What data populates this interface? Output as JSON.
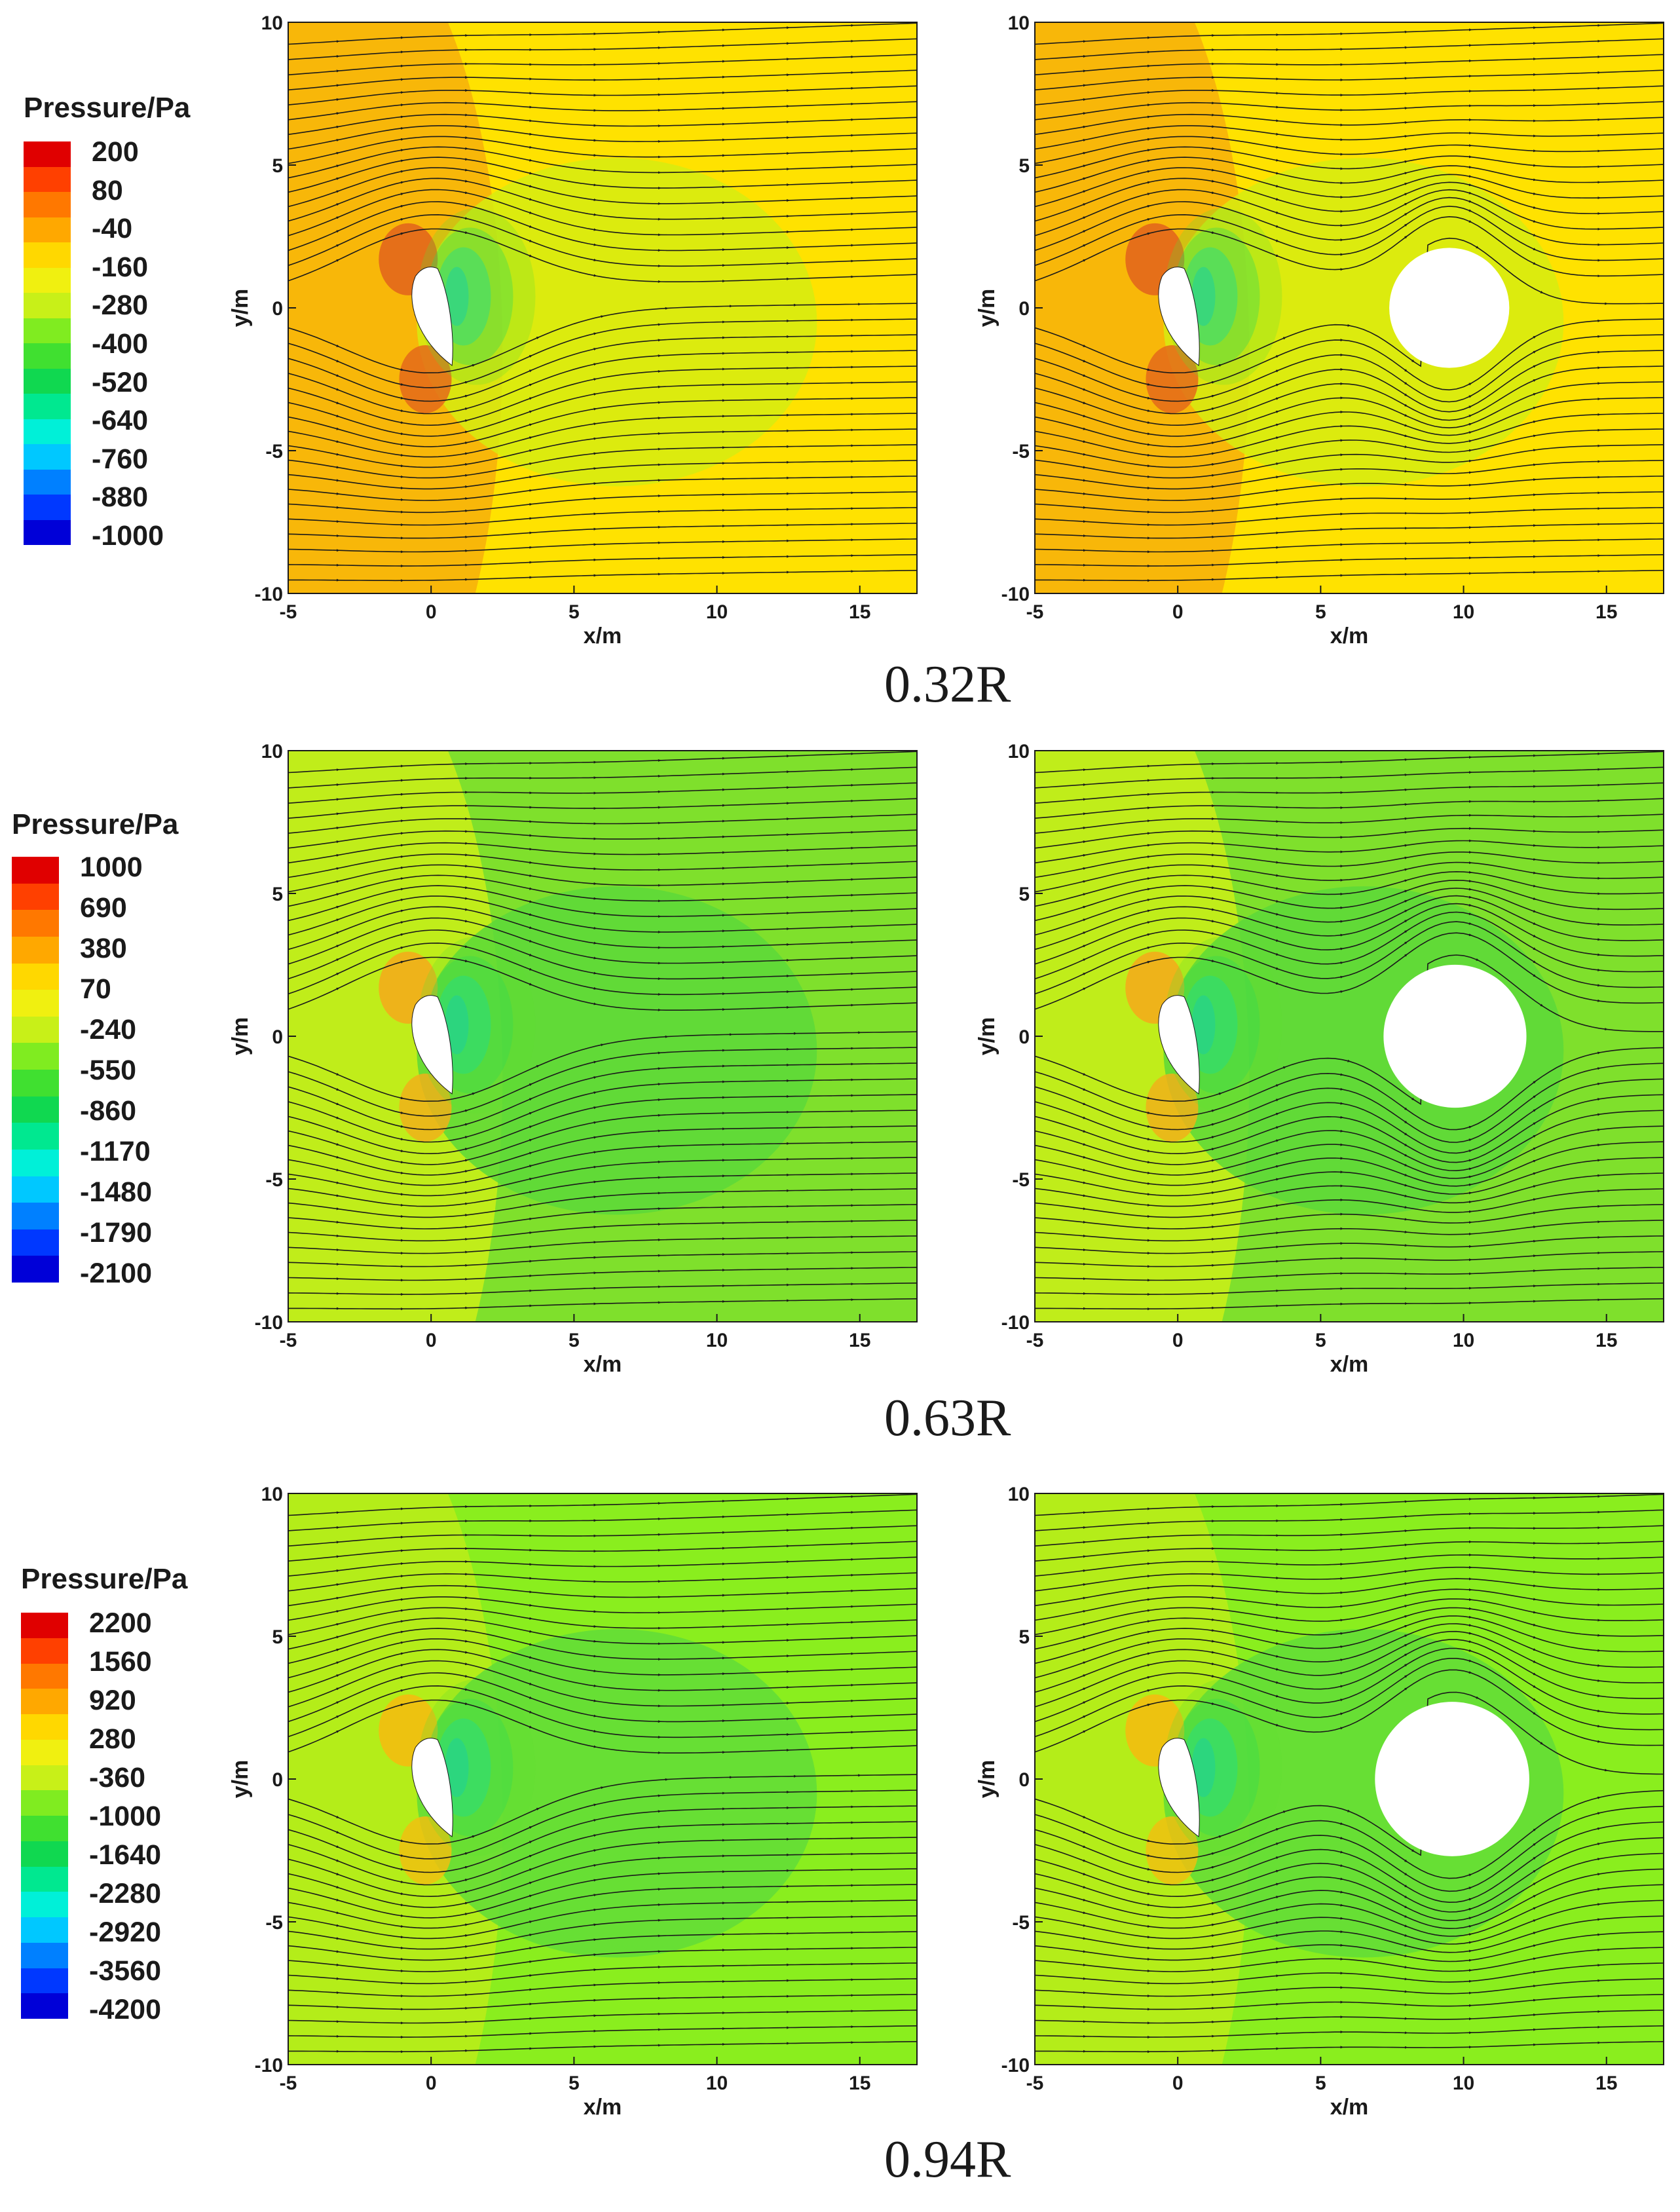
{
  "colors": {
    "scale": [
      "#0000d8",
      "#0038ff",
      "#0080ff",
      "#00c8ff",
      "#00f0d8",
      "#00e890",
      "#10d850",
      "#40e030",
      "#80ec20",
      "#c8f018",
      "#f0f010",
      "#ffd800",
      "#ffa800",
      "#ff7800",
      "#ff4000",
      "#e00000"
    ],
    "streamline": "#1a1a1a",
    "frame": "#1a1a1a"
  },
  "rows": [
    {
      "caption": "0.32R",
      "legend": {
        "title": "Pressure/Pa",
        "labels": [
          "200",
          "80",
          "-40",
          "-160",
          "-280",
          "-400",
          "-520",
          "-640",
          "-760",
          "-880",
          "-1000"
        ]
      },
      "panels": [
        {
          "has_cylinder": false,
          "background": "#ffe200",
          "xlabel": "x/m",
          "ylabel": "y/m",
          "xticks": [
            "-5",
            "0",
            "5",
            "10",
            "15"
          ],
          "yticks": [
            "10",
            "5",
            "0",
            "-5",
            "-10"
          ]
        },
        {
          "has_cylinder": true,
          "background": "#ffe200",
          "xlabel": "x/m",
          "ylabel": "y/m",
          "xticks": [
            "-5",
            "0",
            "5",
            "10",
            "15"
          ],
          "yticks": [
            "10",
            "5",
            "0",
            "-5",
            "-10"
          ]
        }
      ]
    },
    {
      "caption": "0.63R",
      "legend": {
        "title": "Pressure/Pa",
        "labels": [
          "1000",
          "690",
          "380",
          "70",
          "-240",
          "-550",
          "-860",
          "-1170",
          "-1480",
          "-1790",
          "-2100"
        ]
      },
      "panels": [
        {
          "has_cylinder": false,
          "background": "#7fe02c",
          "xlabel": "x/m",
          "ylabel": "y/m",
          "xticks": [
            "-5",
            "0",
            "5",
            "10",
            "15"
          ],
          "yticks": [
            "10",
            "5",
            "0",
            "-5",
            "-10"
          ]
        },
        {
          "has_cylinder": true,
          "background": "#7fe02c",
          "xlabel": "x/m",
          "ylabel": "y/m",
          "xticks": [
            "-5",
            "0",
            "5",
            "10",
            "15"
          ],
          "yticks": [
            "10",
            "5",
            "0",
            "-5",
            "-10"
          ]
        }
      ]
    },
    {
      "caption": "0.94R",
      "legend": {
        "title": "Pressure/Pa",
        "labels": [
          "2200",
          "1560",
          "920",
          "280",
          "-360",
          "-1000",
          "-1640",
          "-2280",
          "-2920",
          "-3560",
          "-4200"
        ]
      },
      "panels": [
        {
          "has_cylinder": false,
          "background": "#8aee1e",
          "xlabel": "x/m",
          "ylabel": "y/m",
          "xticks": [
            "-5",
            "0",
            "5",
            "10",
            "15"
          ],
          "yticks": [
            "10",
            "5",
            "0",
            "-5",
            "-10"
          ]
        },
        {
          "has_cylinder": true,
          "background": "#8aee1e",
          "xlabel": "x/m",
          "ylabel": "y/m",
          "xticks": [
            "-5",
            "0",
            "5",
            "10",
            "15"
          ],
          "yticks": [
            "10",
            "5",
            "0",
            "-5",
            "-10"
          ]
        }
      ]
    }
  ],
  "chart_data": [
    {
      "type": "heatmap",
      "title": "",
      "xlabel": "x/m",
      "ylabel": "y/m",
      "xlim": [
        -5,
        17
      ],
      "ylim": [
        -10,
        10
      ],
      "colorbar_title": "Pressure/Pa",
      "colorbar_labels": [
        200,
        80,
        -40,
        -160,
        -280,
        -400,
        -520,
        -640,
        -760,
        -880,
        -1000
      ],
      "panels": [
        "without cylinder",
        "with cylinder"
      ],
      "caption": "0.32R",
      "cylinder": {
        "cx": 9.5,
        "cy": 0,
        "r": 2.1
      }
    },
    {
      "type": "heatmap",
      "title": "",
      "xlabel": "x/m",
      "ylabel": "y/m",
      "xlim": [
        -5,
        17
      ],
      "ylim": [
        -10,
        10
      ],
      "colorbar_title": "Pressure/Pa",
      "colorbar_labels": [
        1000,
        690,
        380,
        70,
        -240,
        -550,
        -860,
        -1170,
        -1480,
        -1790,
        -2100
      ],
      "panels": [
        "without cylinder",
        "with cylinder"
      ],
      "caption": "0.63R",
      "cylinder": {
        "cx": 9.7,
        "cy": 0,
        "r": 2.5
      }
    },
    {
      "type": "heatmap",
      "title": "",
      "xlabel": "x/m",
      "ylabel": "y/m",
      "xlim": [
        -5,
        17
      ],
      "ylim": [
        -10,
        10
      ],
      "colorbar_title": "Pressure/Pa",
      "colorbar_labels": [
        2200,
        1560,
        920,
        280,
        -360,
        -1000,
        -1640,
        -2280,
        -2920,
        -3560,
        -4200
      ],
      "panels": [
        "without cylinder",
        "with cylinder"
      ],
      "caption": "0.94R",
      "cylinder": {
        "cx": 9.6,
        "cy": 0,
        "r": 2.7
      }
    }
  ]
}
